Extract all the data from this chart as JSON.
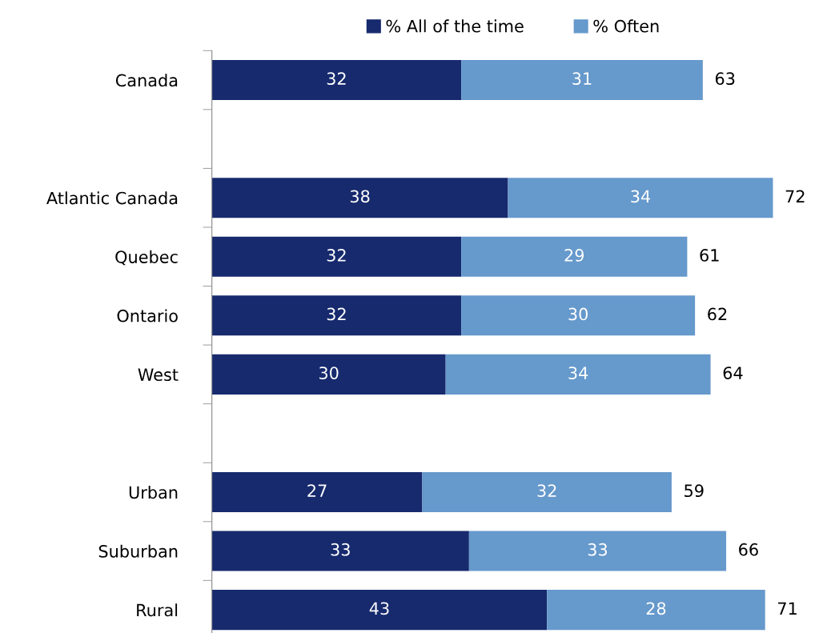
{
  "chart_data": {
    "type": "bar",
    "orientation": "horizontal",
    "stacked": true,
    "data_labels": true,
    "legend": "top",
    "grid": false,
    "categories": [
      "Canada",
      null,
      "Atlantic Canada",
      "Quebec",
      "Ontario",
      "West",
      null,
      "Urban",
      "Suburban",
      "Rural"
    ],
    "series": [
      {
        "name": "% All of the time",
        "color": "#172a6e",
        "values": [
          32,
          null,
          38,
          32,
          32,
          30,
          null,
          27,
          33,
          43
        ]
      },
      {
        "name": "% Often",
        "color": "#6699cc",
        "values": [
          31,
          null,
          34,
          29,
          30,
          34,
          null,
          32,
          33,
          28
        ]
      }
    ],
    "totals": [
      "63",
      null,
      "72",
      "61",
      "62",
      "64",
      null,
      "59",
      "66",
      "71"
    ]
  }
}
